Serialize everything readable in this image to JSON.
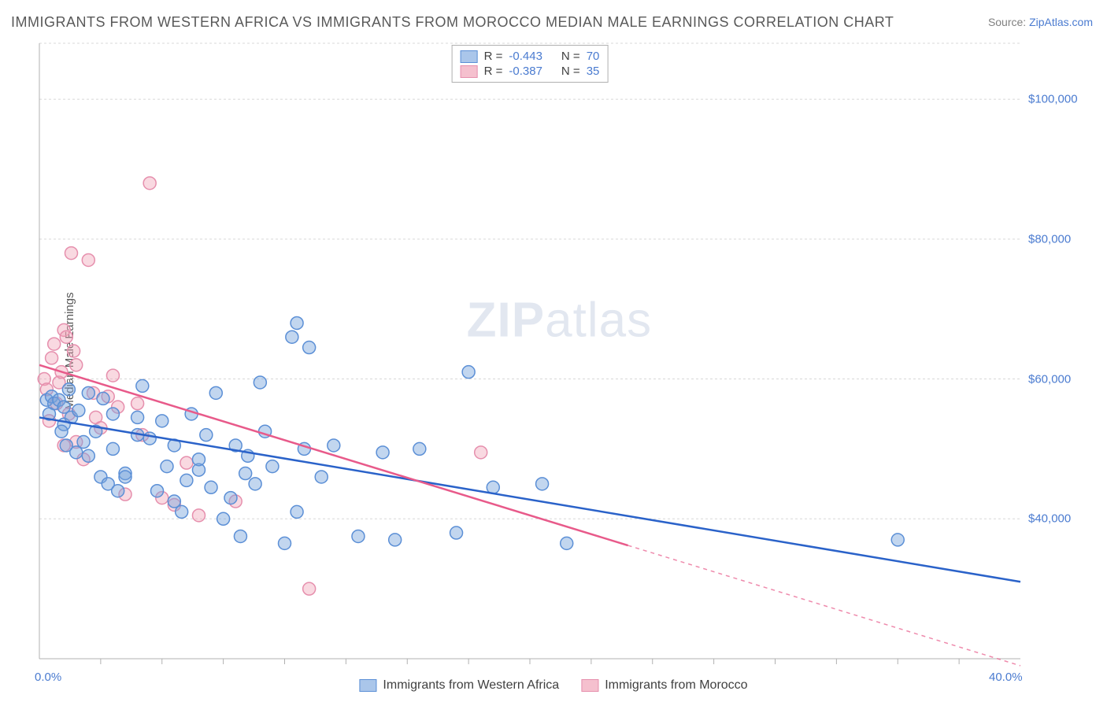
{
  "title": "IMMIGRANTS FROM WESTERN AFRICA VS IMMIGRANTS FROM MOROCCO MEDIAN MALE EARNINGS CORRELATION CHART",
  "source": {
    "label": "Source: ",
    "link": "ZipAtlas.com"
  },
  "ylabel": "Median Male Earnings",
  "watermark": {
    "zip": "ZIP",
    "atlas": "atlas"
  },
  "chart": {
    "type": "scatter",
    "xlim": [
      0,
      40
    ],
    "ylim": [
      20000,
      108000
    ],
    "xunit": "%",
    "background_color": "#ffffff",
    "grid_color": "#d8d8d8",
    "grid_dash": "3,3",
    "axis_color": "#b0b0b0",
    "tick_color": "#b0b0b0",
    "yticks": [
      40000,
      60000,
      80000,
      100000
    ],
    "ytick_labels": [
      "$40,000",
      "$60,000",
      "$80,000",
      "$100,000"
    ],
    "xticks_major": [
      0,
      40
    ],
    "xtick_labels": [
      "0.0%",
      "40.0%"
    ],
    "xticks_minor_step": 2.5,
    "marker_radius": 8,
    "marker_stroke_width": 1.5,
    "trend_line_width": 2.5,
    "series": [
      {
        "id": "western_africa",
        "label": "Immigrants from Western Africa",
        "fill": "rgba(120,164,220,0.45)",
        "stroke": "#5b8fd6",
        "swatch_fill": "#aac6ea",
        "swatch_stroke": "#5b8fd6",
        "trend": {
          "x1": 0,
          "y1": 54500,
          "x2": 40,
          "y2": 31000,
          "color": "#2a62c9",
          "dash_after_x": null
        },
        "R": "-0.443",
        "N": "70",
        "points": [
          [
            0.3,
            57000
          ],
          [
            0.5,
            57500
          ],
          [
            0.6,
            56500
          ],
          [
            0.8,
            57000
          ],
          [
            1.0,
            56000
          ],
          [
            1.2,
            58500
          ],
          [
            1.0,
            53500
          ],
          [
            1.3,
            54500
          ],
          [
            1.6,
            55500
          ],
          [
            2.0,
            58000
          ],
          [
            2.3,
            52500
          ],
          [
            2.6,
            57200
          ],
          [
            2.0,
            49000
          ],
          [
            2.5,
            46000
          ],
          [
            3.0,
            50000
          ],
          [
            3.5,
            46500
          ],
          [
            3.0,
            55000
          ],
          [
            4.0,
            54500
          ],
          [
            4.2,
            59000
          ],
          [
            4.5,
            51500
          ],
          [
            4.8,
            44000
          ],
          [
            5.0,
            54000
          ],
          [
            5.2,
            47500
          ],
          [
            5.5,
            50500
          ],
          [
            5.5,
            42500
          ],
          [
            6.0,
            45500
          ],
          [
            6.2,
            55000
          ],
          [
            6.5,
            47000
          ],
          [
            6.8,
            52000
          ],
          [
            7.0,
            44500
          ],
          [
            7.2,
            58000
          ],
          [
            7.5,
            40000
          ],
          [
            8.0,
            50500
          ],
          [
            8.2,
            37500
          ],
          [
            8.5,
            49000
          ],
          [
            8.8,
            45000
          ],
          [
            9.0,
            59500
          ],
          [
            9.2,
            52500
          ],
          [
            9.5,
            47500
          ],
          [
            10.0,
            36500
          ],
          [
            10.3,
            66000
          ],
          [
            10.5,
            41000
          ],
          [
            10.8,
            50000
          ],
          [
            10.5,
            68000
          ],
          [
            11.0,
            64500
          ],
          [
            11.5,
            46000
          ],
          [
            12.0,
            50500
          ],
          [
            13.0,
            37500
          ],
          [
            14.0,
            49500
          ],
          [
            14.5,
            37000
          ],
          [
            15.5,
            50000
          ],
          [
            17.0,
            38000
          ],
          [
            17.5,
            61000
          ],
          [
            18.5,
            44500
          ],
          [
            20.5,
            45000
          ],
          [
            21.5,
            36500
          ],
          [
            35.0,
            37000
          ],
          [
            3.5,
            46000
          ],
          [
            4.0,
            52000
          ],
          [
            5.8,
            41000
          ],
          [
            6.5,
            48500
          ],
          [
            7.8,
            43000
          ],
          [
            8.4,
            46500
          ],
          [
            2.8,
            45000
          ],
          [
            3.2,
            44000
          ],
          [
            1.5,
            49500
          ],
          [
            1.8,
            51000
          ],
          [
            0.4,
            55000
          ],
          [
            0.9,
            52500
          ],
          [
            1.1,
            50500
          ]
        ]
      },
      {
        "id": "morocco",
        "label": "Immigrants from Morocco",
        "fill": "rgba(240,160,180,0.40)",
        "stroke": "#e68fad",
        "swatch_fill": "#f5c0ce",
        "swatch_stroke": "#e68fad",
        "trend": {
          "x1": 0,
          "y1": 62000,
          "x2": 40,
          "y2": 19000,
          "color": "#e85a8a",
          "dash_after_x": 24
        },
        "R": "-0.387",
        "N": "35",
        "points": [
          [
            0.2,
            60000
          ],
          [
            0.3,
            58500
          ],
          [
            0.5,
            63000
          ],
          [
            0.6,
            65000
          ],
          [
            0.7,
            56500
          ],
          [
            0.8,
            59500
          ],
          [
            1.0,
            67000
          ],
          [
            1.1,
            66000
          ],
          [
            1.2,
            55000
          ],
          [
            1.3,
            78000
          ],
          [
            1.4,
            64000
          ],
          [
            1.5,
            62000
          ],
          [
            1.5,
            51000
          ],
          [
            1.8,
            48500
          ],
          [
            2.0,
            77000
          ],
          [
            2.2,
            58000
          ],
          [
            2.3,
            54500
          ],
          [
            2.5,
            53000
          ],
          [
            2.8,
            57500
          ],
          [
            3.0,
            60500
          ],
          [
            3.2,
            56000
          ],
          [
            3.5,
            43500
          ],
          [
            4.0,
            56500
          ],
          [
            4.2,
            52000
          ],
          [
            4.5,
            88000
          ],
          [
            5.0,
            43000
          ],
          [
            5.5,
            42000
          ],
          [
            6.0,
            48000
          ],
          [
            6.5,
            40500
          ],
          [
            8.0,
            42500
          ],
          [
            11.0,
            30000
          ],
          [
            18.0,
            49500
          ],
          [
            1.0,
            50500
          ],
          [
            0.4,
            54000
          ],
          [
            0.9,
            61000
          ]
        ]
      }
    ]
  },
  "stats_legend_title": {
    "R": "R =",
    "N": "N ="
  }
}
